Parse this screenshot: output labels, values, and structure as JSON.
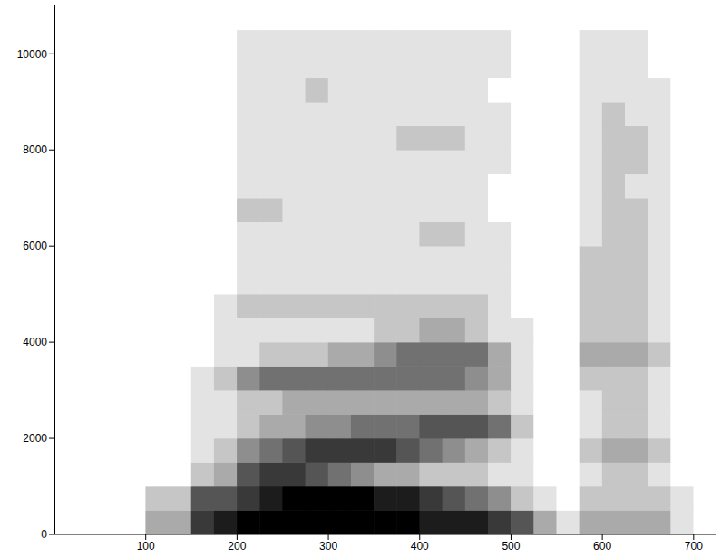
{
  "chart_data": {
    "type": "heatmap",
    "color": "#000000",
    "xlim": [
      0,
      725
    ],
    "ylim": [
      0,
      11025
    ],
    "xticks": [
      100,
      200,
      300,
      400,
      500,
      600,
      700
    ],
    "yticks": [
      0,
      2000,
      4000,
      6000,
      8000,
      10000
    ],
    "x": [
      12.5,
      37.5,
      62.5,
      87.5,
      112.5,
      137.5,
      162.5,
      187.5,
      212.5,
      237.5,
      262.5,
      287.5,
      312.5,
      337.5,
      362.5,
      387.5,
      412.5,
      437.5,
      462.5,
      487.5,
      512.5,
      537.5,
      562.5,
      587.5,
      612.5,
      637.5,
      662.5,
      687.5,
      712.5
    ],
    "y": [
      250,
      750,
      1250,
      1750,
      2250,
      2750,
      3250,
      3750,
      4250,
      4750,
      5250,
      5750,
      6250,
      6750,
      7250,
      7750,
      8250,
      8750,
      9250,
      9750,
      10250,
      10750
    ],
    "values": [
      [
        0,
        0,
        0,
        0,
        3,
        3,
        7,
        8,
        9,
        9,
        9,
        9,
        9,
        9,
        9,
        9,
        8,
        8,
        8,
        7,
        6,
        3,
        1,
        3,
        3,
        3,
        3,
        1,
        0
      ],
      [
        0,
        0,
        0,
        0,
        2,
        2,
        6,
        6,
        7,
        8,
        9,
        9,
        9,
        9,
        8,
        8,
        7,
        6,
        5,
        4,
        2,
        1,
        0,
        2,
        2,
        2,
        2,
        1,
        0
      ],
      [
        0,
        0,
        0,
        0,
        0,
        0,
        2,
        3,
        6,
        7,
        7,
        6,
        5,
        4,
        3,
        3,
        2,
        2,
        2,
        1,
        1,
        0,
        0,
        1,
        2,
        2,
        1,
        0,
        0
      ],
      [
        0,
        0,
        0,
        0,
        0,
        0,
        1,
        2,
        4,
        5,
        6,
        7,
        7,
        7,
        7,
        6,
        5,
        4,
        3,
        2,
        1,
        0,
        0,
        2,
        3,
        3,
        2,
        0,
        0
      ],
      [
        0,
        0,
        0,
        0,
        0,
        0,
        1,
        1,
        2,
        3,
        3,
        4,
        4,
        5,
        5,
        5,
        6,
        6,
        6,
        5,
        2,
        0,
        0,
        1,
        2,
        2,
        1,
        0,
        0
      ],
      [
        0,
        0,
        0,
        0,
        0,
        0,
        1,
        1,
        2,
        2,
        3,
        3,
        3,
        3,
        3,
        3,
        3,
        3,
        3,
        2,
        1,
        0,
        0,
        1,
        2,
        2,
        1,
        0,
        0
      ],
      [
        0,
        0,
        0,
        0,
        0,
        0,
        1,
        2,
        4,
        5,
        5,
        5,
        5,
        5,
        5,
        5,
        5,
        5,
        4,
        3,
        1,
        0,
        0,
        2,
        2,
        2,
        1,
        0,
        0
      ],
      [
        0,
        0,
        0,
        0,
        0,
        0,
        0,
        1,
        1,
        2,
        2,
        2,
        3,
        3,
        4,
        5,
        5,
        5,
        5,
        3,
        1,
        0,
        0,
        3,
        3,
        3,
        2,
        0,
        0
      ],
      [
        0,
        0,
        0,
        0,
        0,
        0,
        0,
        1,
        1,
        1,
        1,
        1,
        1,
        1,
        2,
        2,
        3,
        3,
        2,
        1,
        1,
        0,
        0,
        2,
        2,
        2,
        1,
        0,
        0
      ],
      [
        0,
        0,
        0,
        0,
        0,
        0,
        0,
        1,
        2,
        2,
        2,
        2,
        2,
        2,
        2,
        2,
        2,
        2,
        2,
        1,
        0,
        0,
        0,
        2,
        2,
        2,
        1,
        0,
        0
      ],
      [
        0,
        0,
        0,
        0,
        0,
        0,
        0,
        0,
        1,
        1,
        1,
        1,
        1,
        1,
        1,
        1,
        1,
        1,
        1,
        1,
        0,
        0,
        0,
        2,
        2,
        2,
        1,
        0,
        0
      ],
      [
        0,
        0,
        0,
        0,
        0,
        0,
        0,
        0,
        1,
        1,
        1,
        1,
        1,
        1,
        1,
        1,
        1,
        1,
        1,
        1,
        0,
        0,
        0,
        2,
        2,
        2,
        1,
        0,
        0
      ],
      [
        0,
        0,
        0,
        0,
        0,
        0,
        0,
        0,
        1,
        1,
        1,
        1,
        1,
        1,
        1,
        1,
        2,
        2,
        1,
        1,
        0,
        0,
        0,
        1,
        2,
        2,
        1,
        0,
        0
      ],
      [
        0,
        0,
        0,
        0,
        0,
        0,
        0,
        0,
        2,
        2,
        1,
        1,
        1,
        1,
        1,
        1,
        1,
        1,
        1,
        0,
        0,
        0,
        0,
        1,
        2,
        2,
        1,
        0,
        0
      ],
      [
        0,
        0,
        0,
        0,
        0,
        0,
        0,
        0,
        1,
        1,
        1,
        1,
        1,
        1,
        1,
        1,
        1,
        1,
        1,
        0,
        0,
        0,
        0,
        1,
        2,
        1,
        1,
        0,
        0
      ],
      [
        0,
        0,
        0,
        0,
        0,
        0,
        0,
        0,
        1,
        1,
        1,
        1,
        1,
        1,
        1,
        1,
        1,
        1,
        1,
        1,
        0,
        0,
        0,
        1,
        2,
        2,
        1,
        0,
        0
      ],
      [
        0,
        0,
        0,
        0,
        0,
        0,
        0,
        0,
        1,
        1,
        1,
        1,
        1,
        1,
        1,
        2,
        2,
        2,
        1,
        1,
        0,
        0,
        0,
        1,
        2,
        2,
        1,
        0,
        0
      ],
      [
        0,
        0,
        0,
        0,
        0,
        0,
        0,
        0,
        1,
        1,
        1,
        1,
        1,
        1,
        1,
        1,
        1,
        1,
        1,
        1,
        0,
        0,
        0,
        1,
        2,
        1,
        1,
        0,
        0
      ],
      [
        0,
        0,
        0,
        0,
        0,
        0,
        0,
        0,
        1,
        1,
        1,
        2,
        1,
        1,
        1,
        1,
        1,
        1,
        1,
        0,
        0,
        0,
        0,
        1,
        1,
        1,
        1,
        0,
        0
      ],
      [
        0,
        0,
        0,
        0,
        0,
        0,
        0,
        0,
        1,
        1,
        1,
        1,
        1,
        1,
        1,
        1,
        1,
        1,
        1,
        1,
        0,
        0,
        0,
        1,
        1,
        1,
        0,
        0,
        0
      ],
      [
        0,
        0,
        0,
        0,
        0,
        0,
        0,
        0,
        1,
        1,
        1,
        1,
        1,
        1,
        1,
        1,
        1,
        1,
        1,
        1,
        0,
        0,
        0,
        1,
        1,
        1,
        0,
        0,
        0
      ],
      [
        0,
        0,
        0,
        0,
        0,
        0,
        0,
        0,
        0,
        0,
        0,
        0,
        0,
        0,
        0,
        0,
        0,
        0,
        0,
        0,
        0,
        0,
        0,
        0,
        0,
        0,
        0,
        0,
        0
      ]
    ]
  }
}
